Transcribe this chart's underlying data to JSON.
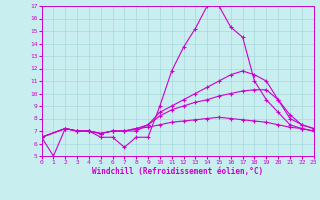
{
  "xlabel": "Windchill (Refroidissement éolien,°C)",
  "xlim": [
    0,
    23
  ],
  "ylim": [
    5,
    17
  ],
  "yticks": [
    5,
    6,
    7,
    8,
    9,
    10,
    11,
    12,
    13,
    14,
    15,
    16,
    17
  ],
  "xticks": [
    0,
    1,
    2,
    3,
    4,
    5,
    6,
    7,
    8,
    9,
    10,
    11,
    12,
    13,
    14,
    15,
    16,
    17,
    18,
    19,
    20,
    21,
    22,
    23
  ],
  "background_color": "#c8eef0",
  "grid_color": "#a8d8dc",
  "line_color": "#cc00cc",
  "series": [
    {
      "x": [
        0,
        1,
        2,
        3,
        4,
        5,
        6,
        7,
        8,
        9,
        10,
        11,
        12,
        13,
        14,
        15,
        16,
        17,
        18,
        19,
        20,
        21,
        22,
        23
      ],
      "y": [
        6.5,
        5.0,
        7.2,
        7.0,
        7.0,
        6.5,
        6.5,
        5.7,
        6.5,
        6.5,
        9.0,
        11.8,
        13.7,
        15.2,
        17.0,
        17.0,
        15.3,
        14.5,
        11.0,
        9.5,
        8.5,
        7.5,
        7.2,
        7.0
      ]
    },
    {
      "x": [
        0,
        2,
        3,
        4,
        5,
        6,
        7,
        8,
        9,
        10,
        11,
        12,
        13,
        14,
        15,
        16,
        17,
        18,
        19,
        20,
        21,
        22,
        23
      ],
      "y": [
        6.5,
        7.2,
        7.0,
        7.0,
        6.8,
        7.0,
        7.0,
        7.0,
        7.5,
        8.5,
        9.0,
        9.5,
        10.0,
        10.5,
        11.0,
        11.5,
        11.8,
        11.5,
        11.0,
        9.5,
        8.0,
        7.5,
        7.2
      ]
    },
    {
      "x": [
        0,
        2,
        3,
        4,
        5,
        6,
        7,
        8,
        9,
        10,
        11,
        12,
        13,
        14,
        15,
        16,
        17,
        18,
        19,
        20,
        21,
        22,
        23
      ],
      "y": [
        6.5,
        7.2,
        7.0,
        7.0,
        6.8,
        7.0,
        7.0,
        7.2,
        7.5,
        8.2,
        8.7,
        9.0,
        9.3,
        9.5,
        9.8,
        10.0,
        10.2,
        10.3,
        10.3,
        9.5,
        8.3,
        7.5,
        7.2
      ]
    },
    {
      "x": [
        0,
        2,
        3,
        4,
        5,
        6,
        7,
        8,
        9,
        10,
        11,
        12,
        13,
        14,
        15,
        16,
        17,
        18,
        19,
        20,
        21,
        22,
        23
      ],
      "y": [
        6.5,
        7.2,
        7.0,
        7.0,
        6.8,
        7.0,
        7.0,
        7.2,
        7.3,
        7.5,
        7.7,
        7.8,
        7.9,
        8.0,
        8.1,
        8.0,
        7.9,
        7.8,
        7.7,
        7.5,
        7.3,
        7.2,
        7.0
      ]
    }
  ]
}
